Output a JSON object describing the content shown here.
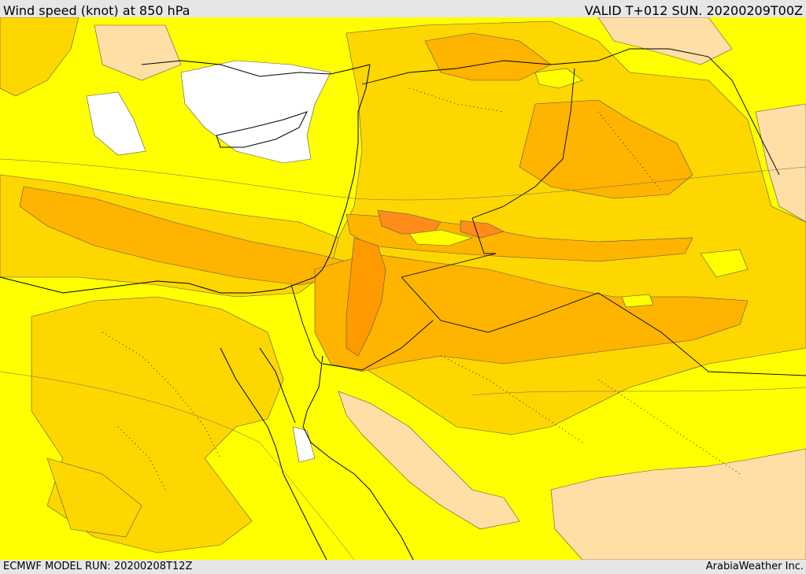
{
  "header": {
    "title": "Wind speed (knot) at 850 hPa",
    "valid": "VALID T+012 SUN. 20200209T00Z"
  },
  "footer": {
    "model_run": "ECMWF MODEL RUN: 20200208T12Z",
    "credit": "ArabiaWeather Inc."
  },
  "palette": {
    "calm": "#ffffff",
    "light": "#ffff00",
    "moderate": "#ffd700",
    "strong": "#ffb400",
    "very_strong": "#ff9b00",
    "peak": "#ff8c1a",
    "tan": "#ffdfa6",
    "border": "#000000"
  }
}
